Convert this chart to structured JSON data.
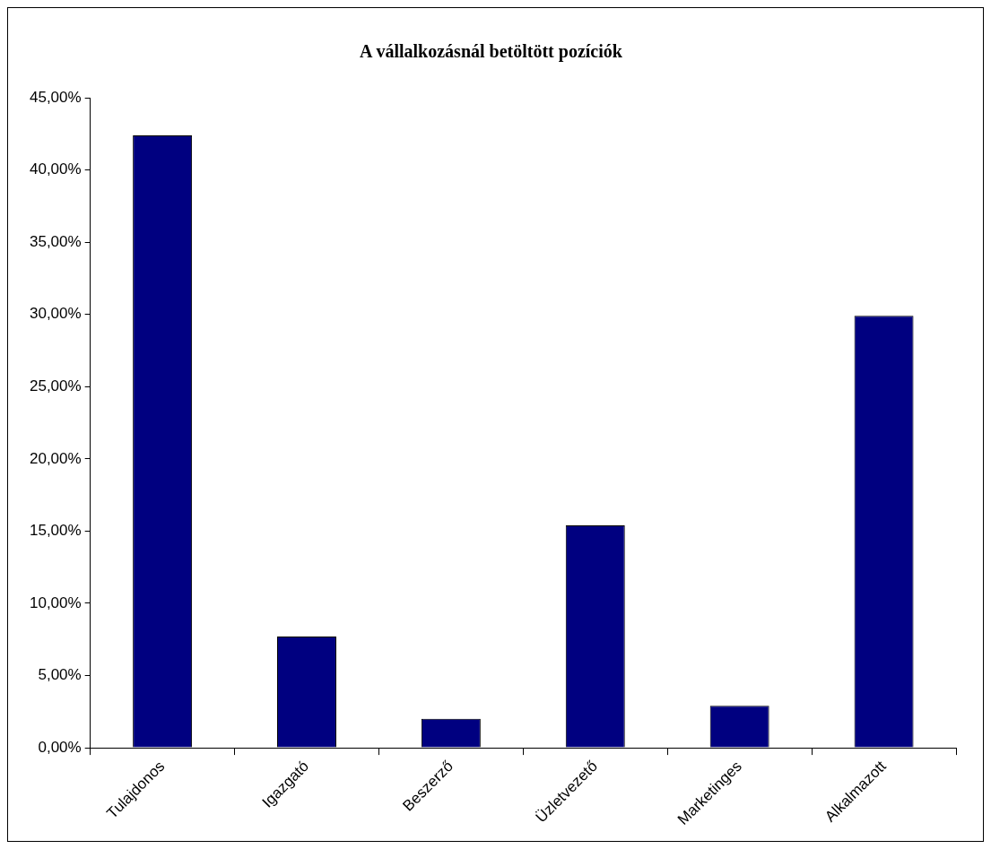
{
  "chart_data": {
    "type": "bar",
    "title": "A vállalkozásnál betöltött pozíciók",
    "categories": [
      "Tulajdonos",
      "Igazgató",
      "Beszerző",
      "Üzletvezető",
      "Marketinges",
      "Alkalmazott"
    ],
    "values": [
      42.4,
      7.7,
      2.0,
      15.4,
      2.9,
      29.9
    ],
    "color": "#000080",
    "ylim": [
      0,
      45
    ],
    "yticks": [
      {
        "value": 0,
        "label": "0,00%"
      },
      {
        "value": 5,
        "label": "5,00%"
      },
      {
        "value": 10,
        "label": "10,00%"
      },
      {
        "value": 15,
        "label": "15,00%"
      },
      {
        "value": 20,
        "label": "20,00%"
      },
      {
        "value": 25,
        "label": "25,00%"
      },
      {
        "value": 30,
        "label": "30,00%"
      },
      {
        "value": 35,
        "label": "35,00%"
      },
      {
        "value": 40,
        "label": "40,00%"
      },
      {
        "value": 45,
        "label": "45,00%"
      }
    ],
    "grid": false,
    "legend": false
  }
}
